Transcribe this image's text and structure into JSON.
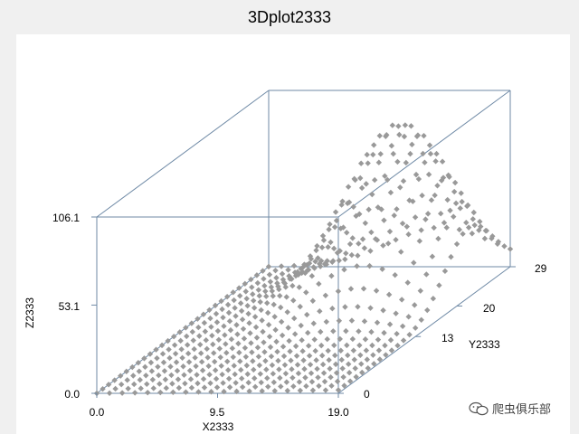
{
  "chart_data": {
    "type": "scatter",
    "title": "3Dplot2333",
    "xlabel": "X2333",
    "ylabel": "Y2333",
    "zlabel": "Z2333",
    "x_ticks": [
      "0.0",
      "9.5",
      "19.0"
    ],
    "y_ticks": [
      "0",
      "13",
      "20",
      "29"
    ],
    "z_ticks": [
      "0.0",
      "53.1",
      "106.1"
    ],
    "xlim": [
      0,
      19
    ],
    "ylim": [
      0,
      29
    ],
    "zlim": [
      0,
      106.1
    ],
    "grid": false,
    "marker_color": "#999999",
    "box_color": "#6f8aa6",
    "surface": {
      "x_count": 20,
      "y_count": 30,
      "peak_value": 106.1,
      "peak_x": 13.5,
      "peak_y": 22,
      "spread": 4
    }
  },
  "watermark": {
    "text": "爬虫俱乐部",
    "icon": "wechat-icon"
  }
}
